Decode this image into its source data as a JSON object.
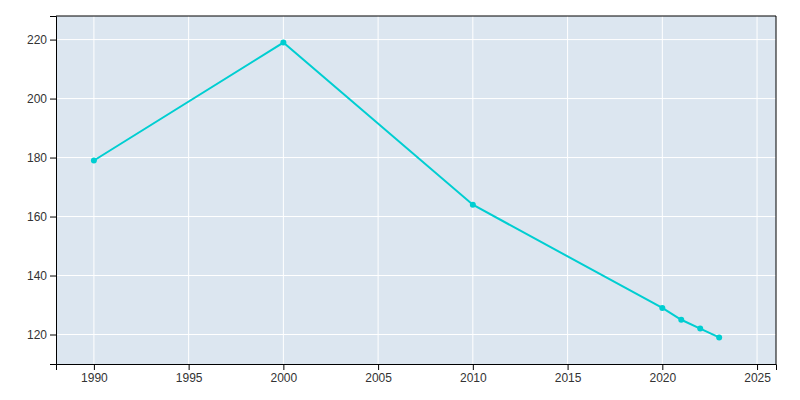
{
  "chart_data": {
    "type": "line",
    "x": [
      1990,
      2000,
      2010,
      2020,
      2021,
      2022,
      2023
    ],
    "values": [
      179,
      219,
      164,
      129,
      125,
      122,
      119
    ],
    "color": "#00CED1",
    "marker": "circle",
    "xlim": [
      1988,
      2026
    ],
    "ylim": [
      110,
      228
    ],
    "xticks": [
      1990,
      1995,
      2000,
      2005,
      2010,
      2015,
      2020,
      2025
    ],
    "yticks": [
      120,
      140,
      160,
      180,
      200,
      220
    ],
    "grid": true
  }
}
